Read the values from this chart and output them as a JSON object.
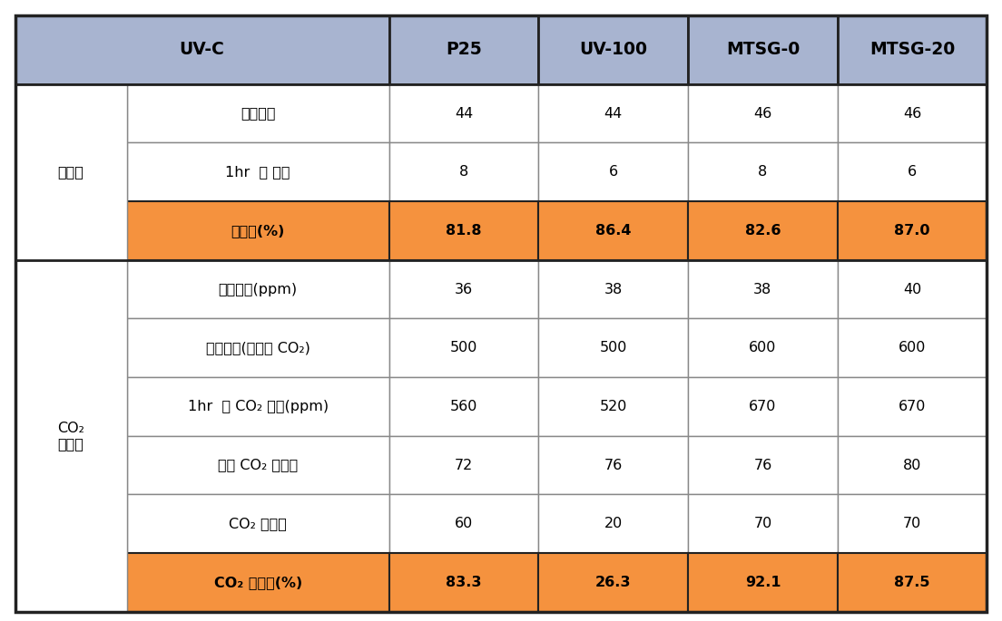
{
  "header_bg": "#a8b4d0",
  "orange_bg": "#f5923e",
  "white_bg": "#ffffff",
  "border_color": "#888888",
  "outer_border_color": "#222222",
  "header_border_color": "#222222",
  "rows": [
    {
      "group": "제거율",
      "group_span": 3,
      "sub_rows": [
        {
          "label": "초기농도",
          "values": [
            "44",
            "44",
            "46",
            "46"
          ],
          "highlight": false,
          "bold": false
        },
        {
          "label": "1hr  후 농도",
          "values": [
            "8",
            "6",
            "8",
            "6"
          ],
          "highlight": false,
          "bold": false
        },
        {
          "label": "제거율(%)",
          "values": [
            "81.8",
            "86.4",
            "82.6",
            "87.0"
          ],
          "highlight": true,
          "bold": true
        }
      ]
    },
    {
      "group": "CO₂\n전환율",
      "group_span": 6,
      "sub_rows": [
        {
          "label": "흡착농도(ppm)",
          "values": [
            "36",
            "38",
            "38",
            "40"
          ],
          "highlight": false,
          "bold": false
        },
        {
          "label": "초기농도(공기중 CO₂)",
          "values": [
            "500",
            "500",
            "600",
            "600"
          ],
          "highlight": false,
          "bold": false
        },
        {
          "label": "1hr  후 CO₂ 농도(ppm)",
          "values": [
            "560",
            "520",
            "670",
            "670"
          ],
          "highlight": false,
          "bold": false
        },
        {
          "label": "이론 CO₂ 발생량",
          "values": [
            "72",
            "76",
            "76",
            "80"
          ],
          "highlight": false,
          "bold": false
        },
        {
          "label": "CO₂ 발생량",
          "values": [
            "60",
            "20",
            "70",
            "70"
          ],
          "highlight": false,
          "bold": false
        },
        {
          "label": "CO₂ 전환율(%)",
          "values": [
            "83.3",
            "26.3",
            "92.1",
            "87.5"
          ],
          "highlight": true,
          "bold": true
        }
      ]
    }
  ],
  "col_headers": [
    "P25",
    "UV-100",
    "MTSG-0",
    "MTSG-20"
  ],
  "main_header_left": "UV-C",
  "fig_width": 11.04,
  "fig_height": 6.85,
  "text_fontsize": 11.5,
  "header_fontsize": 13.5,
  "group_fontsize": 11.5
}
